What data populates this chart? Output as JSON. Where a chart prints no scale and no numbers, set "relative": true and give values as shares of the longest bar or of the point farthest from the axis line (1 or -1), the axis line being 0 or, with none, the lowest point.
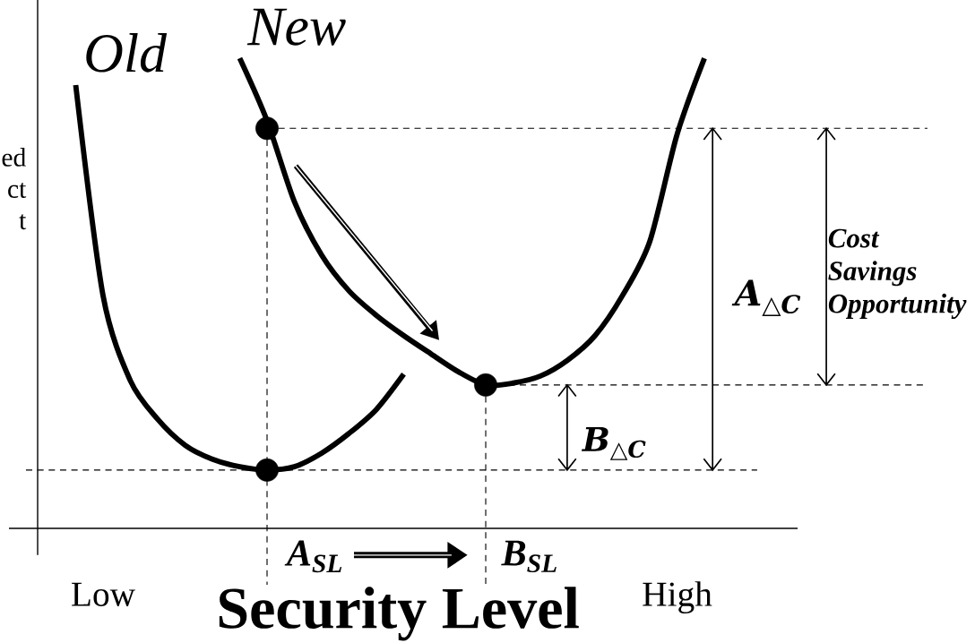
{
  "chart_data": {
    "type": "line",
    "relative": true,
    "xlabel": "Security Level",
    "ylabel": "ed ct t",
    "categories": [
      null,
      "Low",
      null,
      null,
      null,
      null,
      null,
      null,
      null,
      null,
      null,
      null,
      null,
      null,
      null,
      null,
      null,
      null,
      null,
      null,
      null,
      null,
      "High",
      null
    ],
    "series": [
      {
        "name": "Old",
        "color": "#000000",
        "values": [
          0.943,
          0.495,
          0.314,
          0.232,
          0.177,
          0.147,
          0.131,
          0.124,
          0.131,
          0.16,
          0.202,
          0.253,
          0.328,
          null,
          null,
          null,
          null,
          null,
          null,
          null,
          null,
          null,
          null,
          null
        ]
      },
      {
        "name": "New",
        "color": "#000000",
        "values": [
          null,
          null,
          null,
          null,
          null,
          null,
          1.0,
          0.867,
          0.695,
          0.581,
          0.505,
          0.453,
          0.41,
          0.371,
          0.333,
          0.305,
          0.309,
          0.324,
          0.358,
          0.41,
          0.495,
          0.61,
          0.838,
          1.0
        ]
      },
      {
        "type": "scatter",
        "marker": "circle",
        "color": "#000000",
        "values": [
          null,
          null,
          null,
          null,
          null,
          null,
          null,
          0.851,
          null,
          null,
          null,
          null,
          null,
          null,
          null,
          0.305,
          null,
          null,
          null,
          null,
          null,
          null,
          null,
          null
        ]
      },
      {
        "type": "scatter",
        "marker": "circle",
        "color": "#000000",
        "values": [
          null,
          null,
          null,
          null,
          null,
          null,
          null,
          0.124,
          null,
          null,
          null,
          null,
          null,
          null,
          null,
          null,
          null,
          null,
          null,
          null,
          null,
          null,
          null,
          null
        ]
      }
    ],
    "ref_lines": [
      {
        "axis": "y",
        "value": 0.851,
        "line_style": "dashed"
      },
      {
        "axis": "y",
        "value": 0.305,
        "line_style": "dashed"
      },
      {
        "axis": "y",
        "value": 0.124,
        "line_style": "dashed"
      }
    ],
    "annotations": [
      "A$_{SL}$",
      "B$_{SL}$",
      "A$_{△C}$",
      "B$_{△C}$",
      "Cost Savings Opportunity"
    ]
  }
}
